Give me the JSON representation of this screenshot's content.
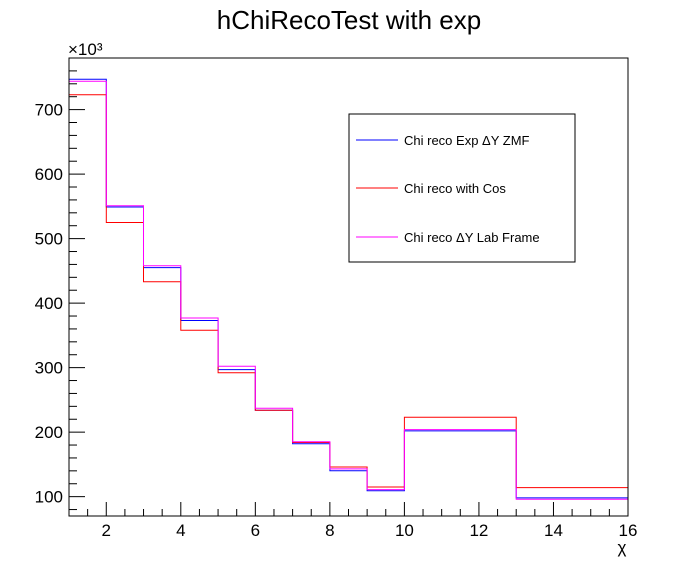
{
  "chart_data": {
    "type": "line",
    "title": "hChiRecoTest with exp",
    "xlabel": "χ",
    "ylabel": "",
    "y_multiplier": "×10³",
    "xlim": [
      1,
      16
    ],
    "ylim": [
      70,
      780
    ],
    "x_ticks": [
      2,
      4,
      6,
      8,
      10,
      12,
      14,
      16
    ],
    "y_ticks": [
      100,
      200,
      300,
      400,
      500,
      600,
      700
    ],
    "y_tick_labels": [
      "100",
      "200",
      "300",
      "400",
      "500",
      "600",
      "700"
    ],
    "x_tick_labels": [
      "2",
      "4",
      "6",
      "8",
      "10",
      "12",
      "14",
      "16"
    ],
    "bin_edges": [
      1,
      2,
      3,
      4,
      5,
      6,
      7,
      8,
      9,
      10,
      13,
      16
    ],
    "series": [
      {
        "name": "Chi reco Exp ΔY ZMF",
        "color": "#0000ff",
        "values": [
          747,
          549,
          455,
          373,
          297,
          234,
          182,
          140,
          109,
          202,
          98
        ]
      },
      {
        "name": "Chi reco with Cos",
        "color": "#ff0000",
        "values": [
          723,
          525,
          433,
          358,
          292,
          234,
          184,
          146,
          115,
          223,
          114
        ]
      },
      {
        "name": "Chi reco ΔY Lab Frame",
        "color": "#ff00ff",
        "values": [
          744,
          551,
          458,
          377,
          302,
          237,
          185,
          143,
          111,
          204,
          96
        ]
      }
    ],
    "legend_position": "top-right",
    "grid": false
  }
}
